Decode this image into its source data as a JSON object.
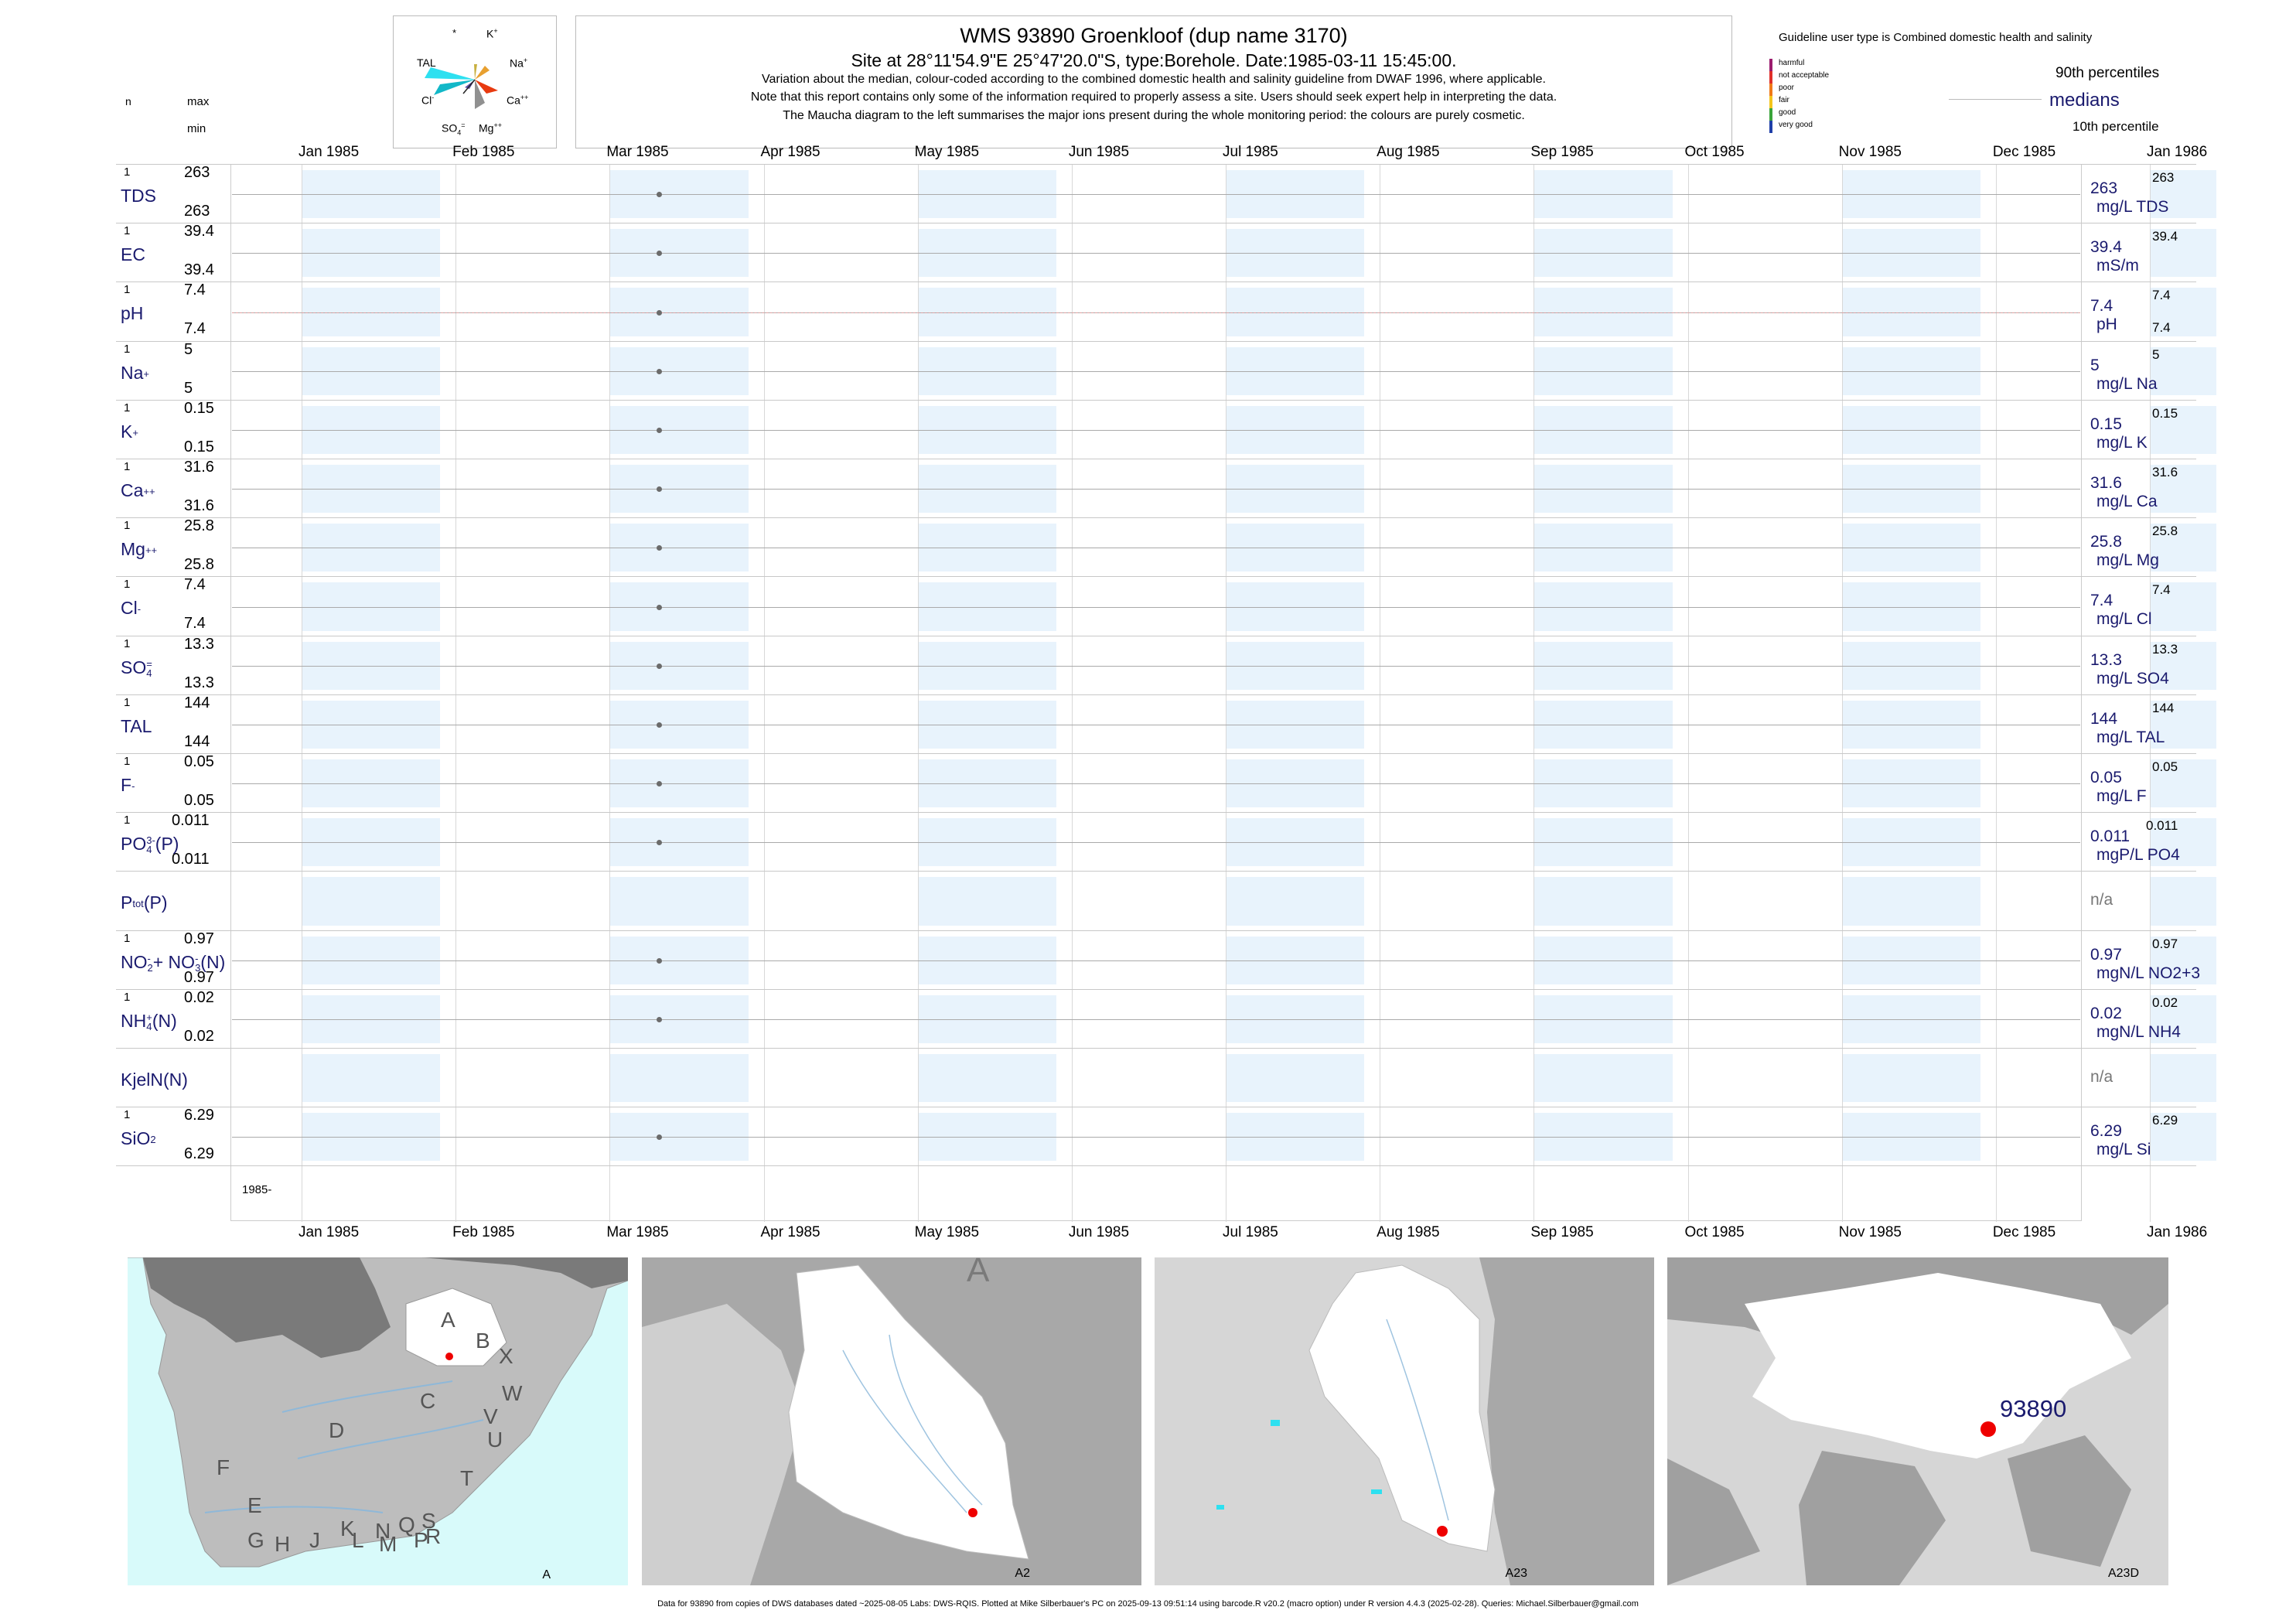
{
  "header": {
    "title": "WMS 93890  Groenkloof (dup name 3170)",
    "subtitle": "Site at 28°11'54.9\"E 25°47'20.0\"S, type:Borehole. Date:1985-03-11 15:45:00.",
    "note1": "Variation about the median,  colour-coded according to the combined domestic health and salinity guideline from DWAF 1996, where applicable.",
    "note2": "Note that this report contains only some of the information required to properly assess a site. Users should seek expert help in interpreting the data.",
    "note3": "The Maucha diagram to the left summarises the major ions present during the whole monitoring period: the colours are purely cosmetic."
  },
  "left_header": {
    "n": "n",
    "max": "max",
    "min": "min"
  },
  "maucha": {
    "star": "*",
    "k": "K",
    "k_sup": "+",
    "tal": "TAL",
    "na": "Na",
    "na_sup": "+",
    "cl": "Cl",
    "cl_sup": "-",
    "ca": "Ca",
    "ca_sup": "++",
    "so4": "SO",
    "so4_sub": "4",
    "so4_sup": "=",
    "mg": "Mg",
    "mg_sup": "++"
  },
  "legend": {
    "guideline": "Guideline user type is Combined domestic health and salinity",
    "classes": [
      {
        "label": "harmful",
        "color": "#9b1d6e"
      },
      {
        "label": "not acceptable",
        "color": "#e0302a"
      },
      {
        "label": "poor",
        "color": "#f07a18"
      },
      {
        "label": "fair",
        "color": "#f4c51c"
      },
      {
        "label": "good",
        "color": "#3aa43a"
      },
      {
        "label": "very good",
        "color": "#1f3fa8"
      }
    ],
    "p90": "90th percentiles",
    "medians": "medians",
    "p10": "10th percentile"
  },
  "chart_data": {
    "type": "scatter",
    "months": [
      "Jan 1985",
      "Feb 1985",
      "Mar 1985",
      "Apr 1985",
      "May 1985",
      "Jun 1985",
      "Jul 1985",
      "Aug 1985",
      "Sep 1985",
      "Oct 1985",
      "Nov 1985",
      "Dec 1985",
      "Jan 1986"
    ],
    "sample_date": "1985-03-11",
    "bottom_label": "1985-",
    "series": [
      {
        "name": "TDS",
        "n": "1",
        "max": "263",
        "min": "263",
        "value": "263",
        "unit": "mg/L TDS",
        "value_max": "263",
        "value_min": ""
      },
      {
        "name": "EC",
        "n": "1",
        "max": "39.4",
        "min": "39.4",
        "value": "39.4",
        "unit": "mS/m",
        "value_max": "39.4",
        "value_min": ""
      },
      {
        "name": "pH",
        "n": "1",
        "max": "7.4",
        "min": "7.4",
        "value": "7.4",
        "unit": "pH",
        "value_max": "7.4",
        "value_min": "7.4"
      },
      {
        "name": "Na",
        "sup": "+",
        "n": "1",
        "max": "5",
        "min": "5",
        "value": "5",
        "unit": "mg/L Na",
        "value_max": "5",
        "value_min": ""
      },
      {
        "name": "K",
        "sup": "+",
        "n": "1",
        "max": "0.15",
        "min": "0.15",
        "value": "0.15",
        "unit": "mg/L K",
        "value_max": "0.15",
        "value_min": ""
      },
      {
        "name": "Ca",
        "sup": "++",
        "n": "1",
        "max": "31.6",
        "min": "31.6",
        "value": "31.6",
        "unit": "mg/L Ca",
        "value_max": "31.6",
        "value_min": ""
      },
      {
        "name": "Mg",
        "sup": "++",
        "n": "1",
        "max": "25.8",
        "min": "25.8",
        "value": "25.8",
        "unit": "mg/L Mg",
        "value_max": "25.8",
        "value_min": ""
      },
      {
        "name": "Cl",
        "sup": "-",
        "n": "1",
        "max": "7.4",
        "min": "7.4",
        "value": "7.4",
        "unit": "mg/L Cl",
        "value_max": "7.4",
        "value_min": ""
      },
      {
        "name": "SO",
        "sub": "4",
        "sup": "=",
        "n": "1",
        "max": "13.3",
        "min": "13.3",
        "value": "13.3",
        "unit": "mg/L SO4",
        "value_max": "13.3",
        "value_min": ""
      },
      {
        "name": "TAL",
        "n": "1",
        "max": "144",
        "min": "144",
        "value": "144",
        "unit": "mg/L TAL",
        "value_max": "144",
        "value_min": ""
      },
      {
        "name": "F",
        "sup": "-",
        "n": "1",
        "max": "0.05",
        "min": "0.05",
        "value": "0.05",
        "unit": "mg/L F",
        "value_max": "0.05",
        "value_min": ""
      },
      {
        "name": "PO",
        "sub": "4",
        "sup": "3-",
        "tail": "(P)",
        "n": "1",
        "max": "0.011",
        "min": "0.011",
        "value": "0.011",
        "unit": "mgP/L PO4",
        "value_max": "0.011",
        "value_min": ""
      },
      {
        "name": "P",
        "sub": "tot",
        "tail": "(P)",
        "n": "",
        "max": "",
        "min": "",
        "value": "n/a",
        "unit": "",
        "value_max": "",
        "value_min": ""
      },
      {
        "name": "NO",
        "sub": "2",
        "sup": "-",
        "tail": "+ NO",
        "sub2": "3",
        "sup2": "-",
        "tail2": "(N)",
        "n": "1",
        "max": "0.97",
        "min": "0.97",
        "value": "0.97",
        "unit": "mgN/L NO2+3",
        "value_max": "0.97",
        "value_min": ""
      },
      {
        "name": "NH",
        "sub": "4",
        "sup": "+",
        "tail": "(N)",
        "n": "1",
        "max": "0.02",
        "min": "0.02",
        "value": "0.02",
        "unit": "mgN/L NH4",
        "value_max": "0.02",
        "value_min": ""
      },
      {
        "name": "KjelN(N)",
        "n": "",
        "max": "",
        "min": "",
        "value": "n/a",
        "unit": "",
        "value_max": "",
        "value_min": ""
      },
      {
        "name": "SiO",
        "sub": "2",
        "n": "1",
        "max": "6.29",
        "min": "6.29",
        "value": "6.29",
        "unit": "mg/L Si",
        "value_max": "6.29",
        "value_min": ""
      }
    ]
  },
  "maps": [
    {
      "label": "A",
      "regions": [
        "A",
        "B",
        "X",
        "W",
        "C",
        "D",
        "V",
        "U",
        "F",
        "E",
        "T",
        "G",
        "H",
        "J",
        "K",
        "L",
        "N",
        "M",
        "Q",
        "P",
        "S",
        "R"
      ]
    },
    {
      "label": "A2",
      "top_label": "A"
    },
    {
      "label": "A23"
    },
    {
      "label": "A23D",
      "site": "93890"
    }
  ],
  "footer": "Data for 93890 from copies of DWS databases dated ~2025-08-05 Labs: DWS-RQIS. Plotted at Mike Silberbauer's PC on 2025-09-13 09:51:14 using barcode.R v20.2 (macro option) under R version 4.4.3 (2025-02-28). Queries: Michael.Silberbauer@gmail.com"
}
